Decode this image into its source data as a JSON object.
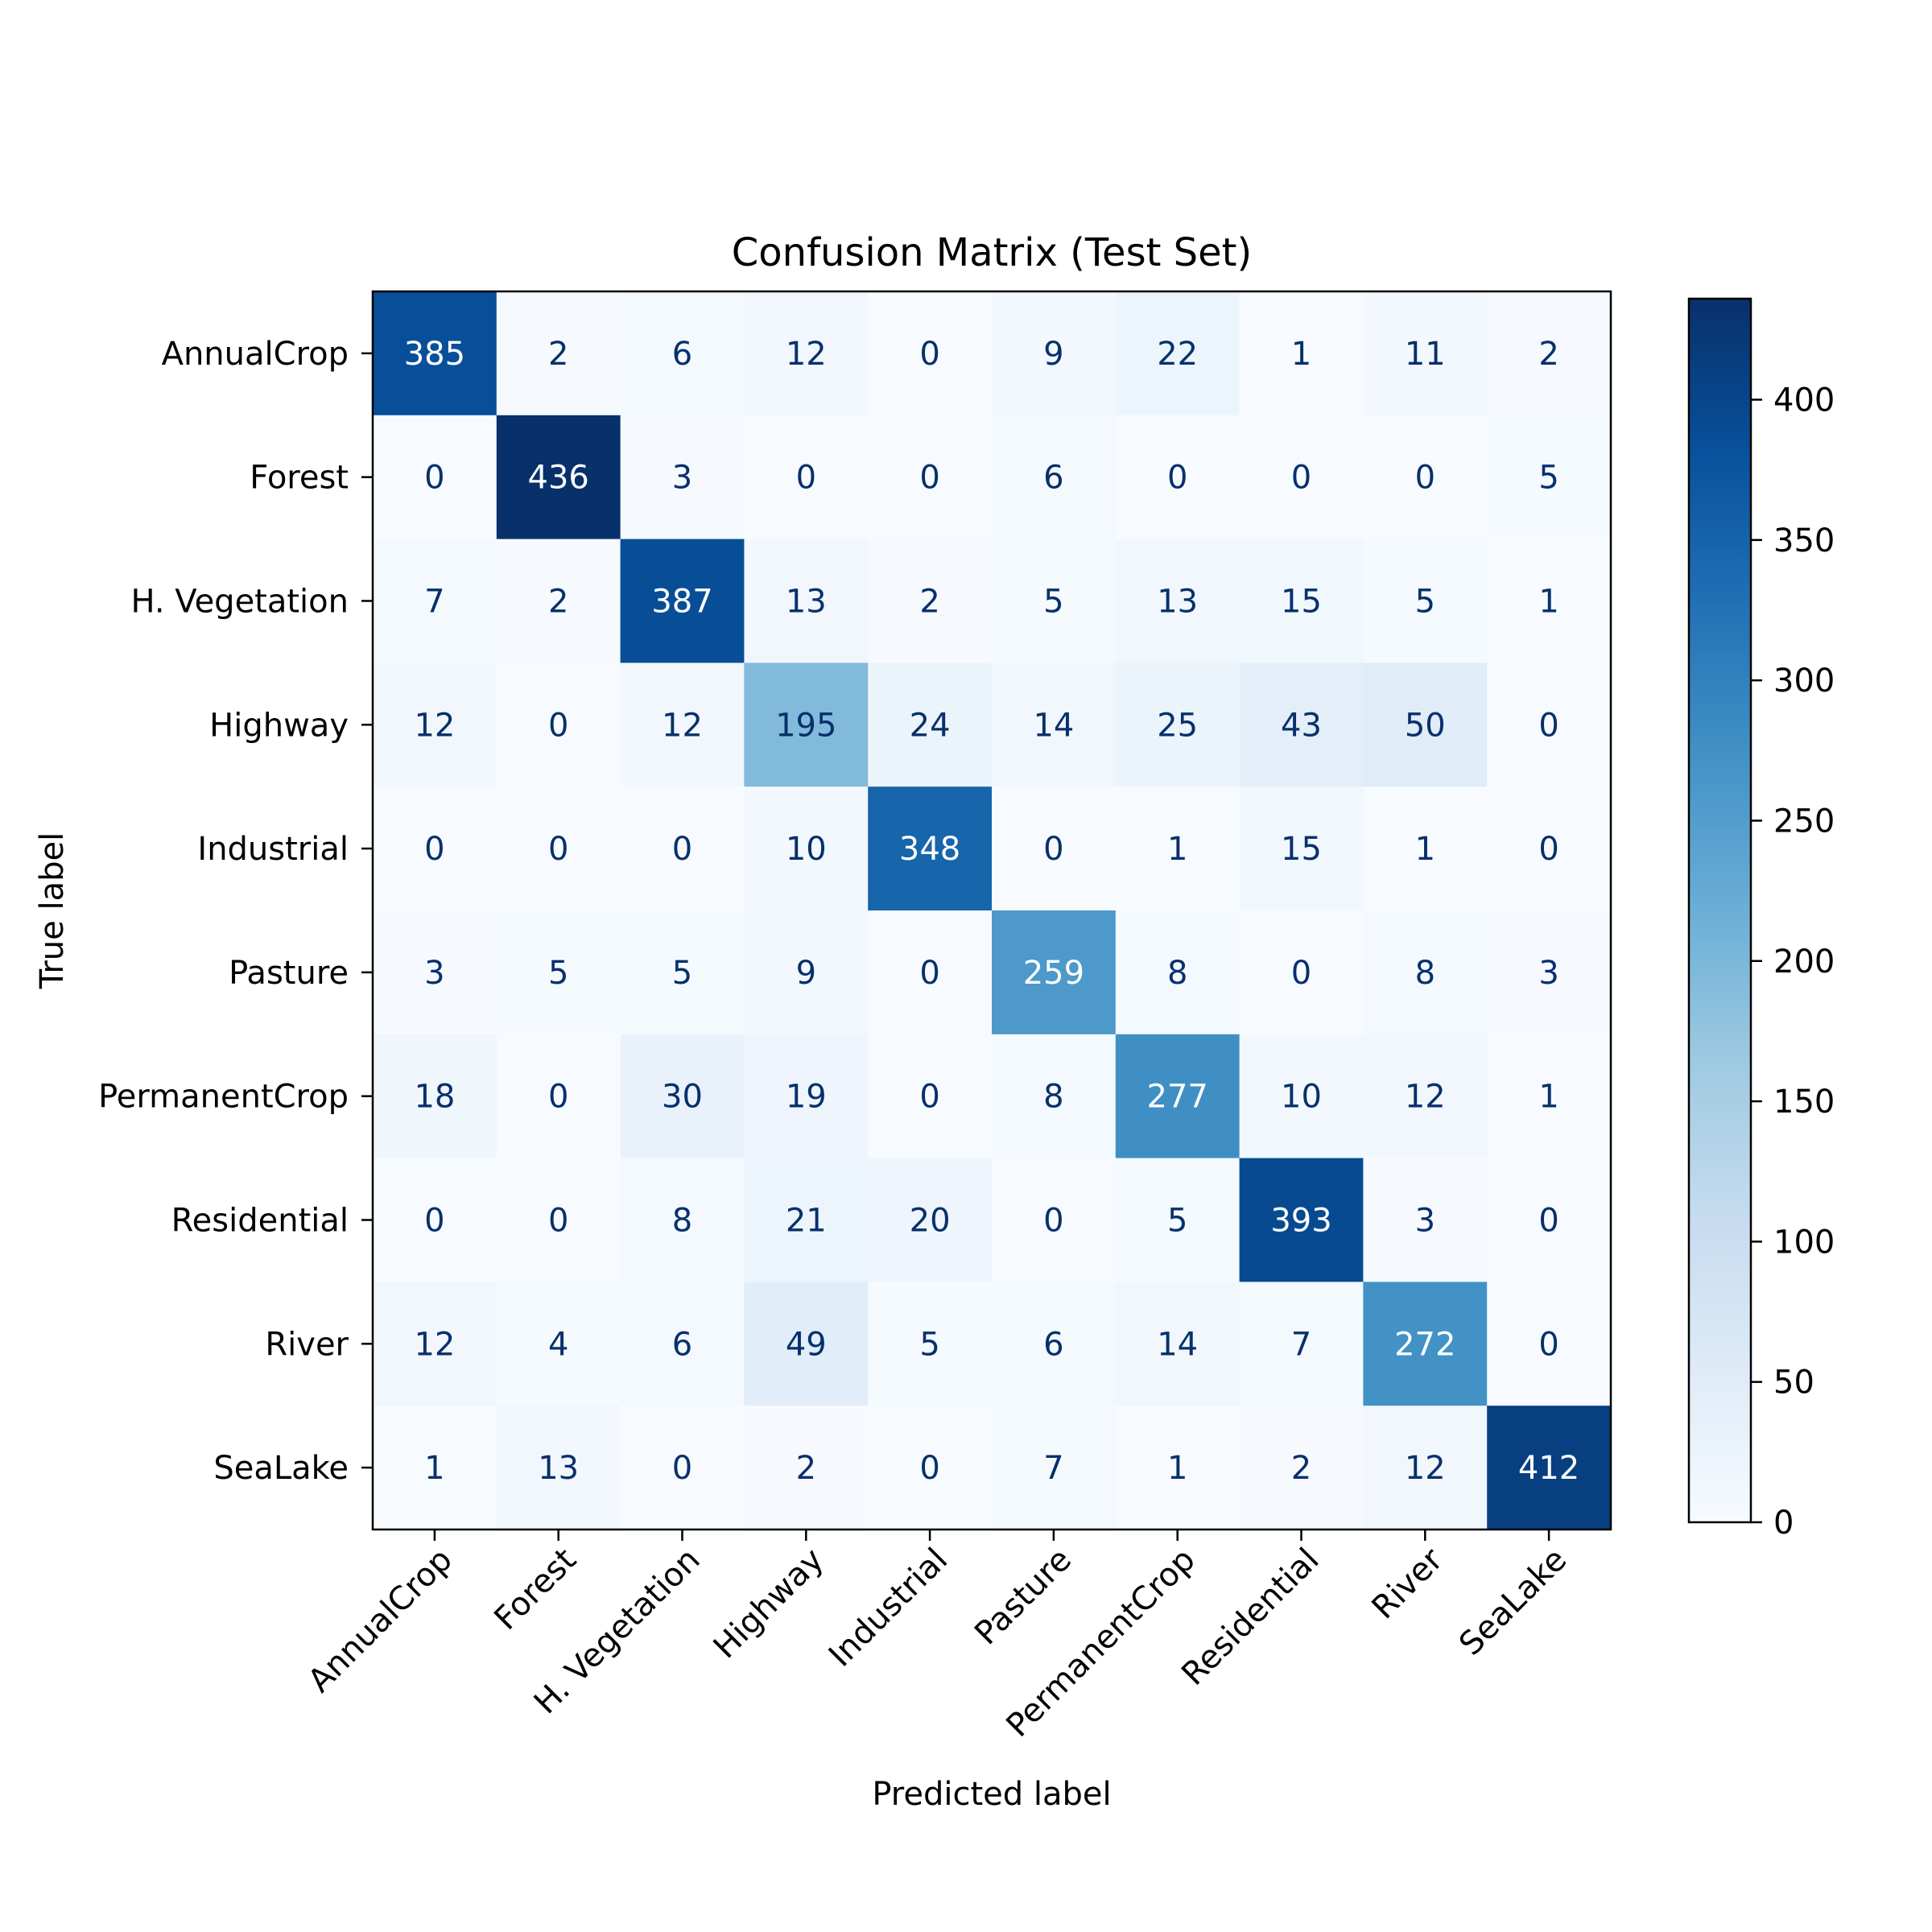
{
  "chart_data": {
    "type": "heatmap",
    "title": "Confusion Matrix (Test Set)",
    "xlabel": "Predicted label",
    "ylabel": "True label",
    "x_categories": [
      "AnnualCrop",
      "Forest",
      "H. Vegetation",
      "Highway",
      "Industrial",
      "Pasture",
      "PermanentCrop",
      "Residential",
      "River",
      "SeaLake"
    ],
    "y_categories": [
      "AnnualCrop",
      "Forest",
      "H. Vegetation",
      "Highway",
      "Industrial",
      "Pasture",
      "PermanentCrop",
      "Residential",
      "River",
      "SeaLake"
    ],
    "matrix": [
      [
        385,
        2,
        6,
        12,
        0,
        9,
        22,
        1,
        11,
        2
      ],
      [
        0,
        436,
        3,
        0,
        0,
        6,
        0,
        0,
        0,
        5
      ],
      [
        7,
        2,
        387,
        13,
        2,
        5,
        13,
        15,
        5,
        1
      ],
      [
        12,
        0,
        12,
        195,
        24,
        14,
        25,
        43,
        50,
        0
      ],
      [
        0,
        0,
        0,
        10,
        348,
        0,
        1,
        15,
        1,
        0
      ],
      [
        3,
        5,
        5,
        9,
        0,
        259,
        8,
        0,
        8,
        3
      ],
      [
        18,
        0,
        30,
        19,
        0,
        8,
        277,
        10,
        12,
        1
      ],
      [
        0,
        0,
        8,
        21,
        20,
        0,
        5,
        393,
        3,
        0
      ],
      [
        12,
        4,
        6,
        49,
        5,
        6,
        14,
        7,
        272,
        0
      ],
      [
        1,
        13,
        0,
        2,
        0,
        7,
        1,
        2,
        12,
        412
      ]
    ],
    "colormap": "Blues",
    "colorbar": {
      "range": [
        0,
        436
      ],
      "ticks": [
        0,
        50,
        100,
        150,
        200,
        250,
        300,
        350,
        400
      ]
    },
    "grid": false
  }
}
